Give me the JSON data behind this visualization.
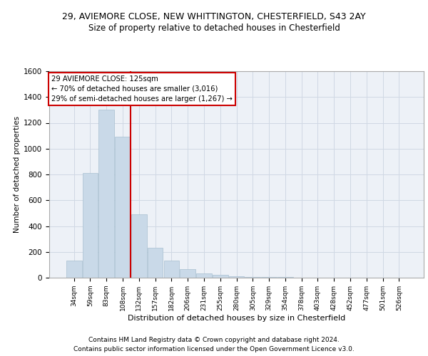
{
  "title_line1": "29, AVIEMORE CLOSE, NEW WHITTINGTON, CHESTERFIELD, S43 2AY",
  "title_line2": "Size of property relative to detached houses in Chesterfield",
  "xlabel": "Distribution of detached houses by size in Chesterfield",
  "ylabel": "Number of detached properties",
  "bins": [
    "34sqm",
    "59sqm",
    "83sqm",
    "108sqm",
    "132sqm",
    "157sqm",
    "182sqm",
    "206sqm",
    "231sqm",
    "255sqm",
    "280sqm",
    "305sqm",
    "329sqm",
    "354sqm",
    "378sqm",
    "403sqm",
    "428sqm",
    "452sqm",
    "477sqm",
    "501sqm",
    "526sqm"
  ],
  "values": [
    134,
    810,
    1300,
    1090,
    490,
    230,
    130,
    65,
    35,
    20,
    10,
    8,
    5,
    3,
    2,
    1,
    1,
    0,
    0,
    0,
    0
  ],
  "bar_color": "#c9d9e8",
  "bar_edgecolor": "#a8bfd0",
  "vline_color": "#cc0000",
  "annotation_text": "29 AVIEMORE CLOSE: 125sqm\n← 70% of detached houses are smaller (3,016)\n29% of semi-detached houses are larger (1,267) →",
  "annotation_box_color": "#ffffff",
  "annotation_box_edgecolor": "#cc0000",
  "ylim": [
    0,
    1600
  ],
  "yticks": [
    0,
    200,
    400,
    600,
    800,
    1000,
    1200,
    1400,
    1600
  ],
  "grid_color": "#d0d8e4",
  "bg_color": "#edf1f7",
  "footer_line1": "Contains HM Land Registry data © Crown copyright and database right 2024.",
  "footer_line2": "Contains public sector information licensed under the Open Government Licence v3.0."
}
